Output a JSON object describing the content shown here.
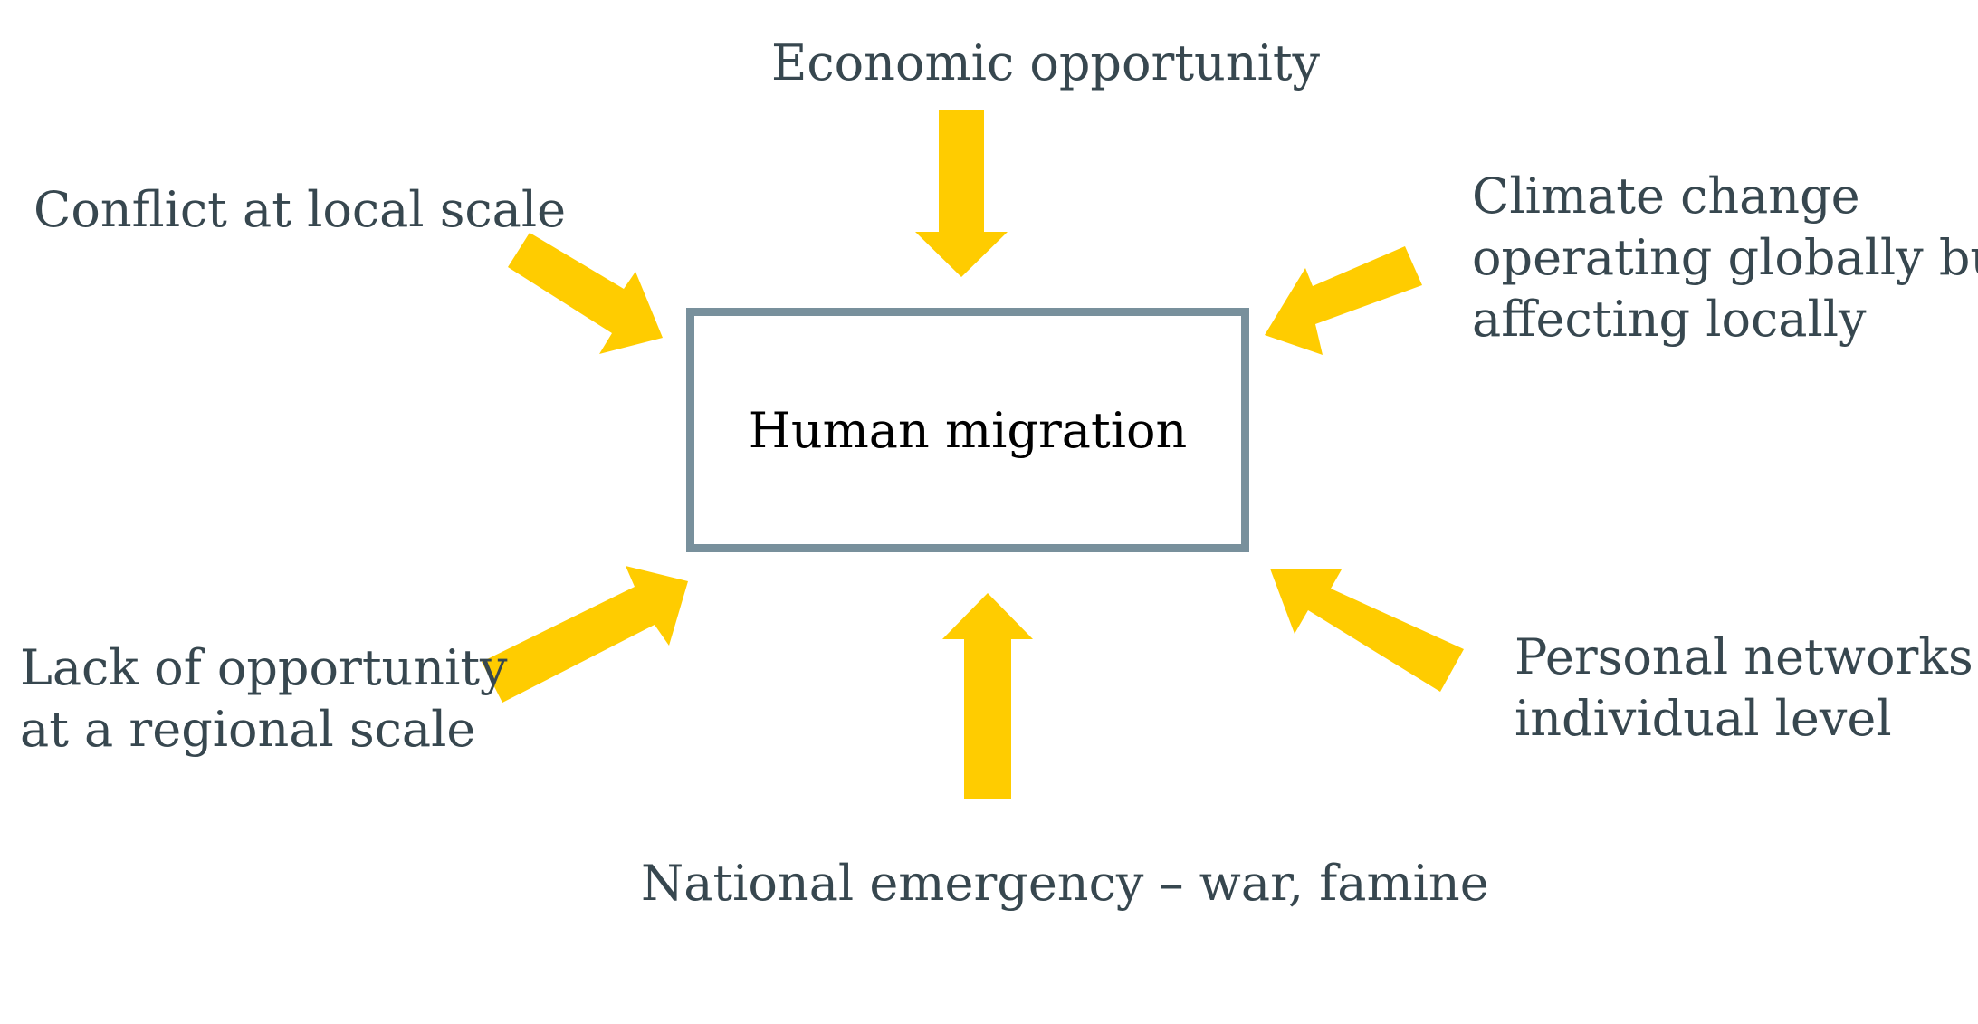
{
  "diagram": {
    "center": {
      "label": "Human migration"
    },
    "factors": {
      "top": {
        "lines": [
          "Economic opportunity"
        ]
      },
      "top_left": {
        "lines": [
          "Conflict at local scale"
        ]
      },
      "top_right": {
        "lines": [
          "Climate change",
          "operating globally but",
          "affecting locally"
        ]
      },
      "bottom_left": {
        "lines": [
          "Lack of opportunity",
          "at a regional scale"
        ]
      },
      "bottom_right": {
        "lines": [
          "Personal networks –",
          "individual level"
        ]
      },
      "bottom": {
        "lines": [
          "National emergency – war, famine"
        ]
      }
    },
    "colors": {
      "arrow": "#ffcc00",
      "box_border": "#78909c",
      "label_text": "#37474f",
      "center_text": "#000000"
    }
  }
}
